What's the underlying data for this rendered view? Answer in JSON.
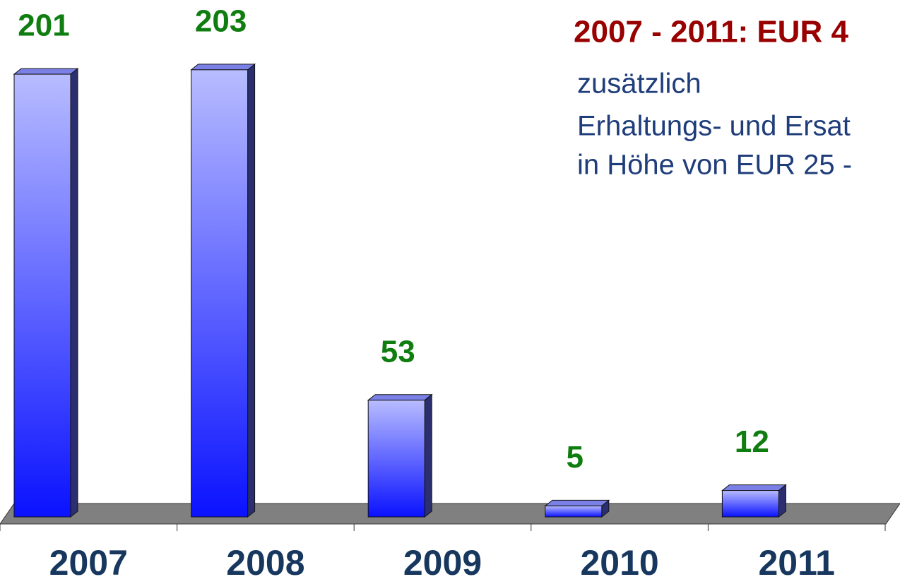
{
  "chart_data": {
    "type": "bar3d",
    "title": "2007 - 2011: EUR 4",
    "annotations": [
      "zusätzlich",
      "Erhaltungs- und Ersat",
      "in Höhe von EUR 25 -"
    ],
    "categories": [
      "2007",
      "2008",
      "2009",
      "2010",
      "2011"
    ],
    "values": [
      201,
      203,
      53,
      5,
      12
    ],
    "color": "#1a1aff",
    "label_color": "#0f7d0f",
    "ylim": [
      0,
      210
    ]
  }
}
